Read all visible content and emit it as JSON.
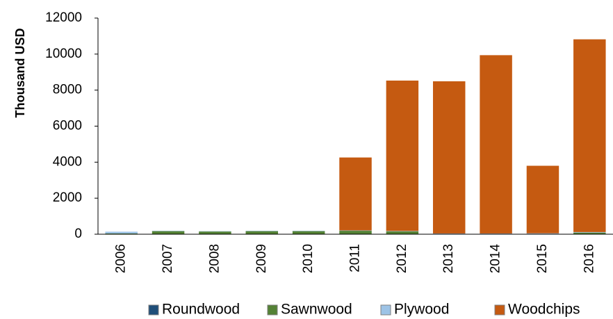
{
  "chart_data": {
    "type": "bar",
    "stacked": true,
    "categories": [
      "2006",
      "2007",
      "2008",
      "2009",
      "2010",
      "2011",
      "2012",
      "2013",
      "2014",
      "2015",
      "2016"
    ],
    "series": [
      {
        "name": "Roundwood",
        "color": "#1F4E79",
        "values": [
          0,
          0,
          0,
          0,
          0,
          0,
          0,
          0,
          0,
          0,
          0
        ]
      },
      {
        "name": "Sawnwood",
        "color": "#548235",
        "values": [
          40,
          170,
          150,
          170,
          170,
          190,
          160,
          10,
          0,
          20,
          90
        ]
      },
      {
        "name": "Plywood",
        "color": "#9DC3E6",
        "values": [
          100,
          20,
          20,
          20,
          20,
          20,
          20,
          30,
          40,
          30,
          30
        ]
      },
      {
        "name": "Woodchips",
        "color": "#C55A11",
        "values": [
          0,
          0,
          0,
          0,
          0,
          4050,
          8350,
          8450,
          9900,
          3750,
          10700
        ]
      }
    ],
    "ylabel": "Thousand USD",
    "xlabel": "",
    "ylim": [
      0,
      12000
    ],
    "yticks": [
      0,
      2000,
      4000,
      6000,
      8000,
      10000,
      12000
    ],
    "grid": false,
    "legend_position": "bottom"
  }
}
